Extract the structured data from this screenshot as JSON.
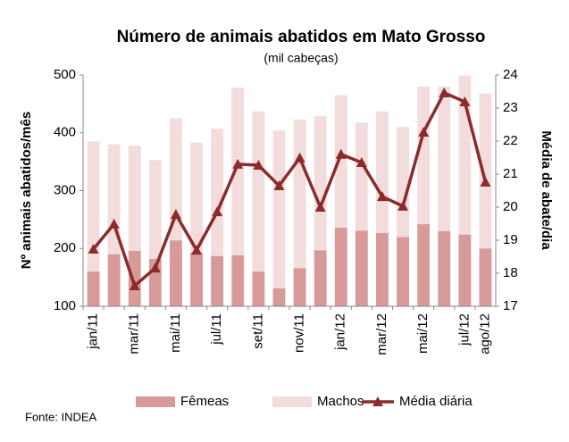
{
  "chart_data": {
    "type": "bar-line",
    "title": "Número de animais abatidos em Mato Grosso",
    "subtitle": "(mil cabeças)",
    "ylabel": "Nº animais abatidos/mês",
    "y2label": "Média de abate/dia",
    "source": "Fonte: INDEA",
    "categories": [
      "jan/11",
      null,
      "mar/11",
      null,
      "mai/11",
      null,
      "jul/11",
      null,
      "set/11",
      null,
      "nov/11",
      null,
      "jan/12",
      null,
      "mar/12",
      null,
      "mai/12",
      null,
      "jul/12",
      "ago/12"
    ],
    "ylim": [
      100,
      500
    ],
    "yticks": [
      100,
      200,
      300,
      400,
      500
    ],
    "y2lim": [
      17,
      24
    ],
    "y2ticks": [
      17,
      18,
      19,
      20,
      21,
      22,
      23,
      24
    ],
    "grid": false,
    "series": [
      {
        "name": "Fêmeas",
        "color": "#d79a99",
        "stack": true,
        "values": [
          160,
          190,
          196,
          182,
          214,
          193,
          187,
          188,
          160,
          131,
          166,
          197,
          236,
          231,
          227,
          220,
          242,
          230,
          224,
          200
        ]
      },
      {
        "name": "Machos",
        "color": "#f3dcdc",
        "stack": true,
        "values": [
          225,
          190,
          182,
          171,
          211,
          190,
          220,
          290,
          277,
          273,
          257,
          232,
          229,
          187,
          210,
          190,
          238,
          250,
          275,
          268
        ]
      },
      {
        "name": "Média diária",
        "color": "#8c2b2b",
        "axis": "y2",
        "values": [
          18.73,
          19.49,
          17.62,
          18.16,
          19.78,
          18.7,
          19.86,
          21.3,
          21.27,
          20.65,
          21.49,
          20.0,
          21.6,
          21.35,
          20.32,
          20.03,
          22.27,
          23.46,
          23.19,
          20.76
        ]
      }
    ]
  }
}
